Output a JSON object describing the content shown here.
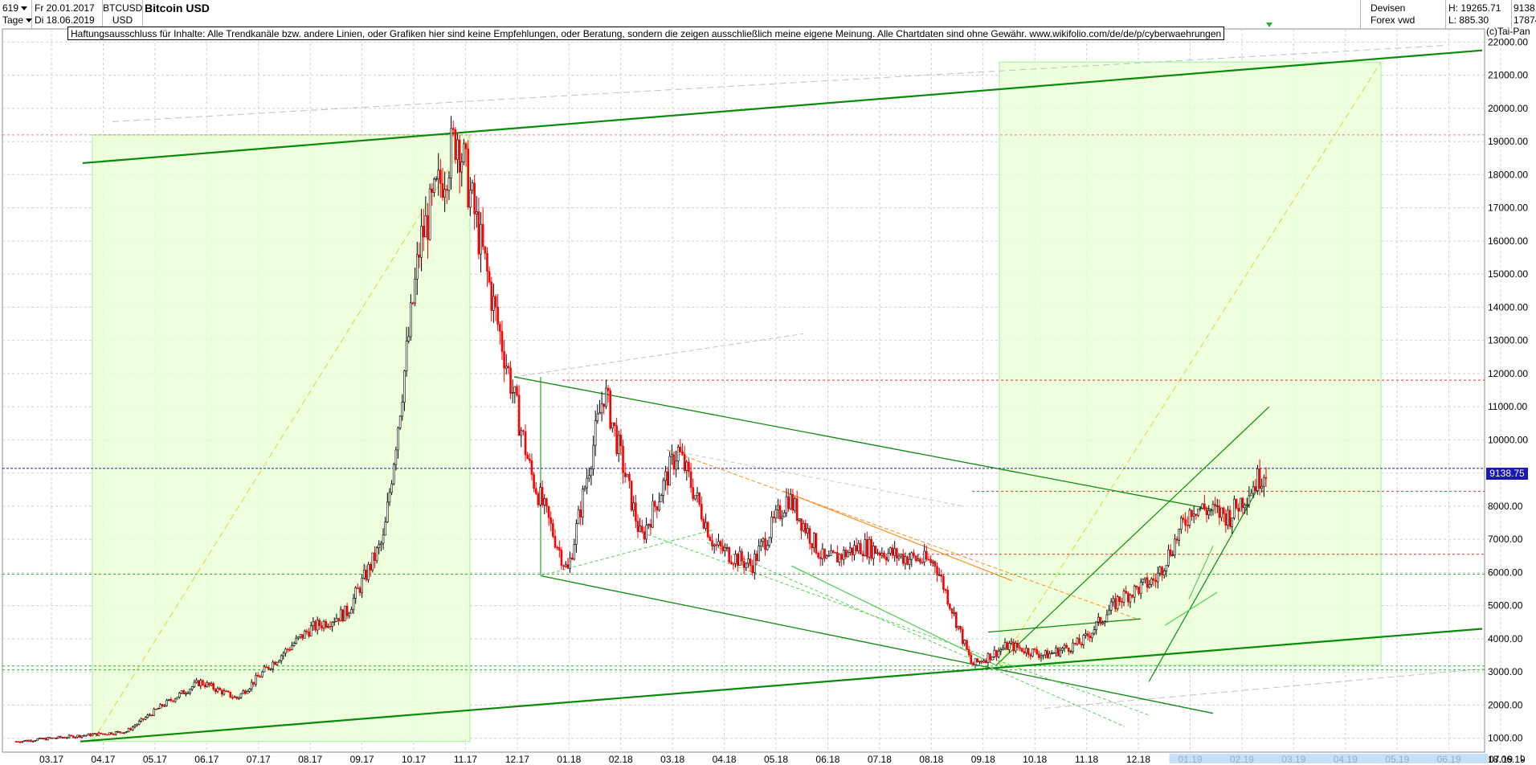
{
  "header": {
    "count": "619",
    "period": "Tage",
    "date_from": "Fr 20.01.2017",
    "date_to": "Di 18.06.2019",
    "symbol": "BTCUSD",
    "currency": "USD",
    "title": "Bitcoin USD",
    "source_1": "Devisen",
    "source_2": "Forex vwd",
    "high": "H: 19265.71",
    "low": "L: 885.30",
    "last_1": "9138.75",
    "last_2": "178740.5/"
  },
  "disclaimer": "Haftungsausschluss für Inhalte: Alle Trendkanäle bzw. andere Linien, oder Grafiken hier sind keine Empfehlungen, oder Beratung, sondern die zeigen ausschließlich meine eigene Meinung. Alle Chartdaten sind ohne Gewähr.  www.wikifolio.com/de/de/p/cyberwaehrungen",
  "copyright": "(c)Tai-Pan",
  "corner_label": "L",
  "colors": {
    "up": "#000000",
    "down": "#ff0000",
    "channel": "#0a8a0a",
    "light_green": "#90ee90",
    "box_fill": "#eaffd8",
    "red_dash": "#e23030",
    "price_line": "#1a1ab3",
    "orange": "#ff8c1a",
    "yellow": "#d8d840"
  },
  "chart_data": {
    "type": "candlestick",
    "title": "Bitcoin USD",
    "y_axis": {
      "min": 700,
      "max": 22300,
      "ticks": [
        "1000.00",
        "2000.00",
        "3000.00",
        "4000.00",
        "5000.00",
        "6000.00",
        "7000.00",
        "8000.00",
        "9000.00",
        "10000.00",
        "11000.00",
        "12000.00",
        "13000.00",
        "14000.00",
        "15000.00",
        "16000.00",
        "17000.00",
        "18000.00",
        "19000.00",
        "20000.00",
        "21000.00",
        "22000.00"
      ],
      "position": "right"
    },
    "x_axis": {
      "ticks": [
        "03.17",
        "04.17",
        "05.17",
        "06.17",
        "07.17",
        "08.17",
        "09.17",
        "10.17",
        "11.17",
        "12.17",
        "01.18",
        "02.18",
        "03.18",
        "04.18",
        "05.18",
        "06.18",
        "07.18",
        "08.18",
        "09.18",
        "10.18",
        "11.18",
        "12.18",
        "01.19",
        "02.19",
        "03.19",
        "04.19",
        "05.19",
        "06.19",
        "07.19",
        "08.19",
        "09.19",
        "10.19"
      ],
      "end_label": "18.06.19"
    },
    "last_price": "9138.75",
    "price_path": [
      [
        "01.17",
        900
      ],
      [
        "02.17",
        1000
      ],
      [
        "03.17",
        1100
      ],
      [
        "04.17",
        1200
      ],
      [
        "05.17",
        2000
      ],
      [
        "06.17",
        2700
      ],
      [
        "07.17",
        2200
      ],
      [
        "08.17",
        3300
      ],
      [
        "09.17",
        4300
      ],
      [
        "10.17",
        4800
      ],
      [
        "11.17",
        7000
      ],
      [
        "12.17",
        16000
      ],
      [
        "12.17b",
        19265
      ],
      [
        "01.18",
        14000
      ],
      [
        "02.18",
        9000
      ],
      [
        "02.18b",
        6000
      ],
      [
        "03.18",
        11500
      ],
      [
        "04.18",
        7000
      ],
      [
        "05.18",
        9700
      ],
      [
        "06.18",
        6800
      ],
      [
        "07.18",
        6200
      ],
      [
        "08.18",
        8300
      ],
      [
        "08.18b",
        6300
      ],
      [
        "09.18",
        6800
      ],
      [
        "10.18",
        6500
      ],
      [
        "11.18",
        6300
      ],
      [
        "12.18",
        3200
      ],
      [
        "01.19",
        3800
      ],
      [
        "02.19",
        3500
      ],
      [
        "03.19",
        3900
      ],
      [
        "04.19",
        5200
      ],
      [
        "05.19",
        5800
      ],
      [
        "05.19b",
        8000
      ],
      [
        "06.19",
        7700
      ],
      [
        "06.19b",
        9138.75
      ]
    ],
    "grid": true,
    "horizontal_levels": [
      11800,
      8450,
      6550,
      5950,
      3180,
      3060
    ],
    "legend": "none"
  }
}
